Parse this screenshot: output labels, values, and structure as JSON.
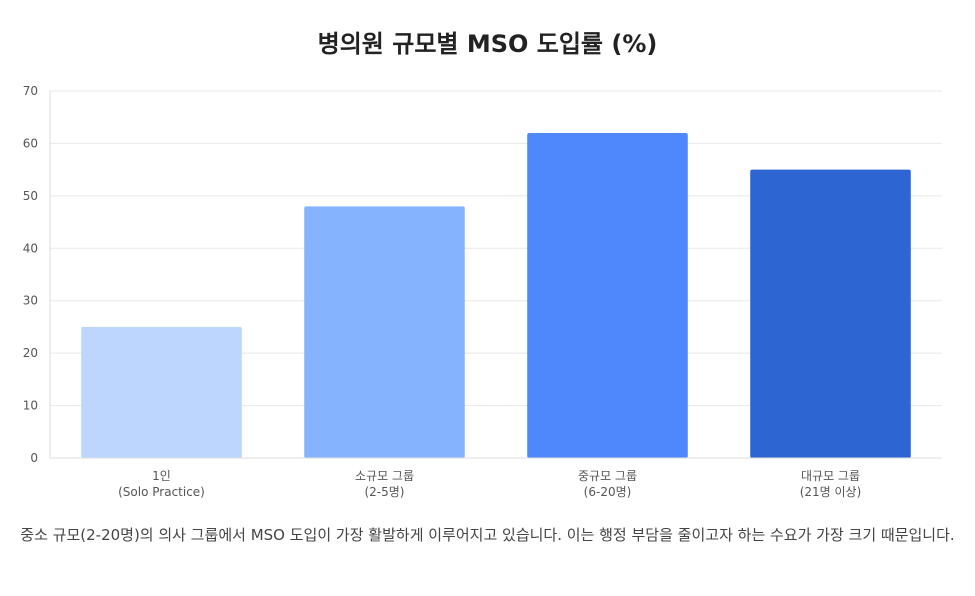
{
  "chart_data": {
    "type": "bar",
    "title": "병의원 규모별 MSO 도입률 (%)",
    "categories": [
      [
        "1인",
        "(Solo Practice)"
      ],
      [
        "소규모 그룹",
        "(2-5명)"
      ],
      [
        "중규모 그룹",
        "(6-20명)"
      ],
      [
        "대규모 그룹",
        "(21명 이상)"
      ]
    ],
    "values": [
      25,
      48,
      62,
      55
    ],
    "colors": [
      "#bcd6fd",
      "#86b3fd",
      "#4f87fc",
      "#2d66d2"
    ],
    "ylim": [
      0,
      70
    ],
    "yticks": [
      0,
      10,
      20,
      30,
      40,
      50,
      60,
      70
    ],
    "grid": true,
    "legend": "none"
  },
  "caption": "중소 규모(2-20명)의 의사 그룹에서 MSO 도입이 가장 활발하게 이루어지고 있습니다. 이는 행정 부담을 줄이고자 하는 수요가 가장 크기 때문입니다."
}
